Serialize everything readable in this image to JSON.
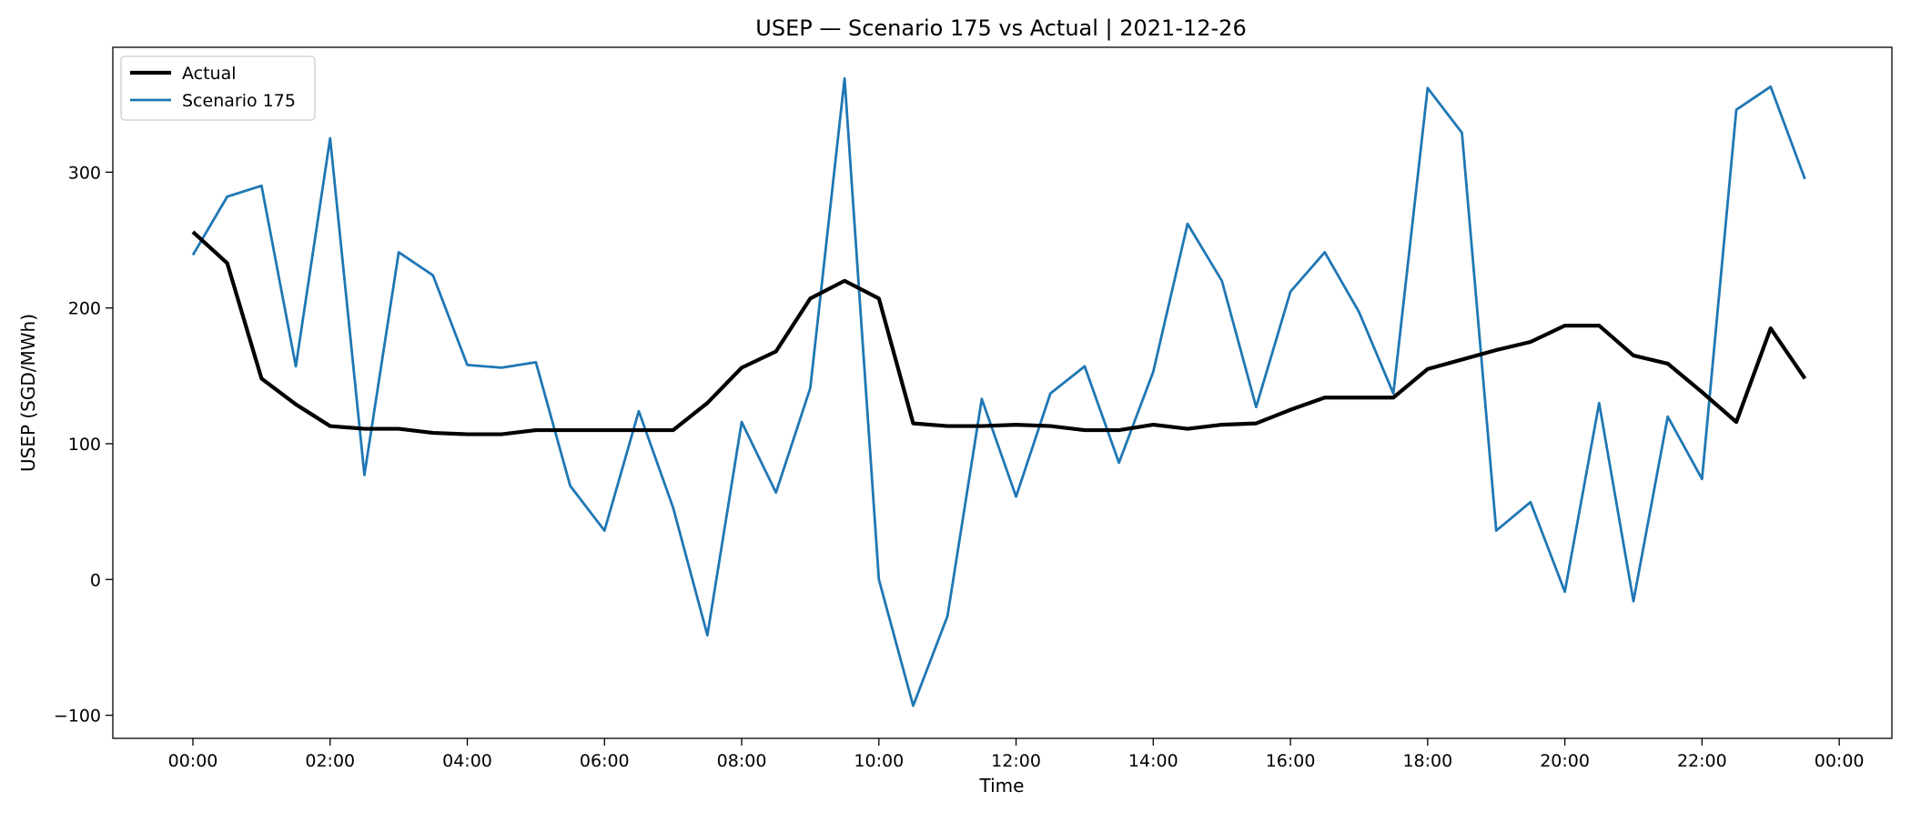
{
  "chart_data": {
    "type": "line",
    "title": "USEP — Scenario 175 vs Actual | 2021-12-26",
    "xlabel": "Time",
    "ylabel": "USEP (SGD/MWh)",
    "x": [
      "00:00",
      "00:30",
      "01:00",
      "01:30",
      "02:00",
      "02:30",
      "03:00",
      "03:30",
      "04:00",
      "04:30",
      "05:00",
      "05:30",
      "06:00",
      "06:30",
      "07:00",
      "07:30",
      "08:00",
      "08:30",
      "09:00",
      "09:30",
      "10:00",
      "10:30",
      "11:00",
      "11:30",
      "12:00",
      "12:30",
      "13:00",
      "13:30",
      "14:00",
      "14:30",
      "15:00",
      "15:30",
      "16:00",
      "16:30",
      "17:00",
      "17:30",
      "18:00",
      "18:30",
      "19:00",
      "19:30",
      "20:00",
      "20:30",
      "21:00",
      "21:30",
      "22:00",
      "22:30",
      "23:00",
      "23:30"
    ],
    "x_tick_labels": [
      "00:00",
      "02:00",
      "04:00",
      "06:00",
      "08:00",
      "10:00",
      "12:00",
      "14:00",
      "16:00",
      "18:00",
      "20:00",
      "22:00",
      "00:00"
    ],
    "y_ticks": [
      -100,
      0,
      100,
      200,
      300
    ],
    "ylim": [
      -117,
      392
    ],
    "grid": false,
    "legend_position": "top-left",
    "series": [
      {
        "name": "Actual",
        "color": "#000000",
        "values": [
          256,
          233,
          148,
          129,
          113,
          111,
          111,
          108,
          107,
          107,
          110,
          110,
          110,
          110,
          110,
          130,
          156,
          168,
          207,
          220,
          207,
          115,
          113,
          113,
          114,
          113,
          110,
          110,
          114,
          111,
          114,
          115,
          125,
          134,
          134,
          134,
          155,
          162,
          169,
          175,
          187,
          187,
          165,
          159,
          138,
          116,
          185,
          148
        ]
      },
      {
        "name": "Scenario 175",
        "color": "#1f77b4",
        "values": [
          239,
          282,
          290,
          157,
          325,
          77,
          241,
          224,
          158,
          156,
          160,
          69,
          36,
          124,
          53,
          -41,
          116,
          64,
          141,
          369,
          0,
          -93,
          -27,
          133,
          61,
          137,
          157,
          86,
          153,
          262,
          220,
          127,
          212,
          241,
          197,
          137,
          362,
          329,
          36,
          57,
          -9,
          130,
          -16,
          120,
          74,
          346,
          363,
          295
        ]
      }
    ]
  }
}
